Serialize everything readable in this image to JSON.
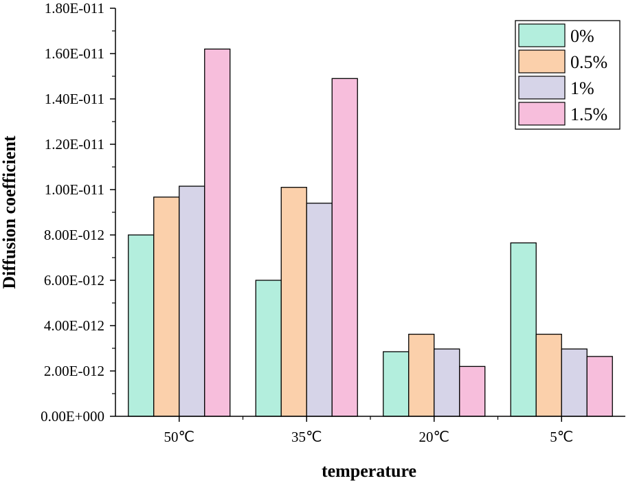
{
  "chart_data": {
    "type": "bar",
    "title": "",
    "xlabel": "temperature",
    "ylabel": "Diffusion coefficient",
    "categories": [
      "50℃",
      "35℃",
      "20℃",
      "5℃"
    ],
    "ylim": [
      0,
      1.8e-11
    ],
    "yticks": [
      0,
      2e-12,
      4e-12,
      6e-12,
      8e-12,
      1e-11,
      1.2e-11,
      1.4e-11,
      1.6e-11,
      1.8e-11
    ],
    "ytick_labels": [
      "0.00E+000",
      "2.00E-012",
      "4.00E-012",
      "6.00E-012",
      "8.00E-012",
      "1.00E-011",
      "1.20E-011",
      "1.40E-011",
      "1.60E-011",
      "1.80E-011"
    ],
    "grid": false,
    "legend_position": "top-right",
    "series": [
      {
        "name": "0%",
        "color": "#b3eedd",
        "values": [
          8e-12,
          6e-12,
          2.85e-12,
          7.65e-12
        ]
      },
      {
        "name": "0.5%",
        "color": "#fbd0ab",
        "values": [
          9.67e-12,
          1.01e-11,
          3.62e-12,
          3.62e-12
        ]
      },
      {
        "name": "1%",
        "color": "#d6d4e8",
        "values": [
          1.015e-11,
          9.4e-12,
          2.97e-12,
          2.97e-12
        ]
      },
      {
        "name": "1.5%",
        "color": "#f7bedc",
        "values": [
          1.62e-11,
          1.49e-11,
          2.2e-12,
          2.64e-12
        ]
      }
    ]
  }
}
